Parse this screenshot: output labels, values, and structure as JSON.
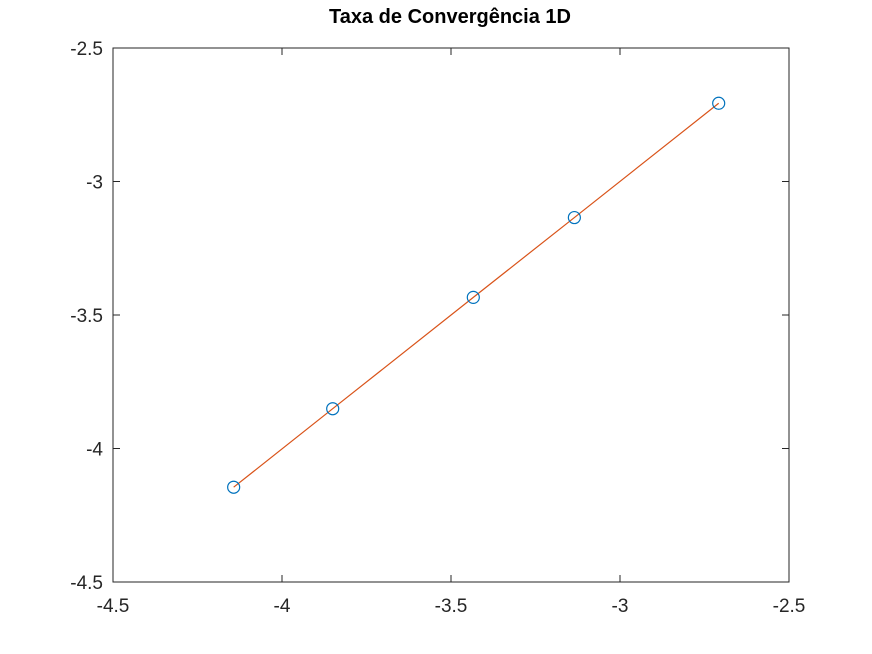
{
  "chart_data": {
    "type": "line",
    "title": "Taxa de Convergência 1D",
    "xlabel": "",
    "ylabel": "",
    "xlim": [
      -4.5,
      -2.5
    ],
    "ylim": [
      -4.5,
      -2.5
    ],
    "xticks": [
      -4.5,
      -4,
      -3.5,
      -3,
      -2.5
    ],
    "xtick_labels": [
      "-4.5",
      "-4",
      "-3.5",
      "-3",
      "-2.5"
    ],
    "yticks": [
      -4.5,
      -4,
      -3.5,
      -3,
      -2.5
    ],
    "ytick_labels": [
      "-4.5",
      "-4",
      "-3.5",
      "-3",
      "-2.5"
    ],
    "grid": false,
    "legend": "none",
    "series": [
      {
        "style": "markers",
        "marker": "circle",
        "color": "#0072BD",
        "x": [
          -4.143,
          -3.85,
          -3.434,
          -3.135,
          -2.708
        ],
        "y": [
          -4.145,
          -3.851,
          -3.434,
          -3.135,
          -2.707
        ]
      },
      {
        "style": "line",
        "color": "#D95319",
        "x": [
          -4.143,
          -3.85,
          -3.434,
          -3.135,
          -2.708
        ],
        "y": [
          -4.145,
          -3.851,
          -3.434,
          -3.135,
          -2.707
        ]
      }
    ]
  }
}
